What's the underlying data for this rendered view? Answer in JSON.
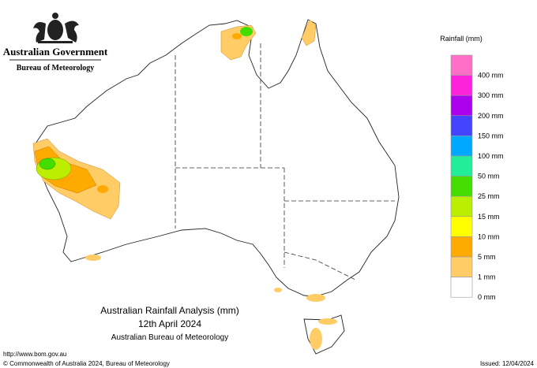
{
  "header": {
    "government": "Australian Government",
    "agency": "Bureau of Meteorology"
  },
  "legend": {
    "title": "Rainfall (mm)",
    "items": [
      {
        "label": "400 mm",
        "color": "#ff6ec7"
      },
      {
        "label": "300 mm",
        "color": "#ff22dd"
      },
      {
        "label": "200 mm",
        "color": "#aa00ee"
      },
      {
        "label": "150 mm",
        "color": "#4444ff"
      },
      {
        "label": "100 mm",
        "color": "#00a8ff"
      },
      {
        "label": "50 mm",
        "color": "#22ee99"
      },
      {
        "label": "25 mm",
        "color": "#44dd00"
      },
      {
        "label": "15 mm",
        "color": "#bbee00"
      },
      {
        "label": "10 mm",
        "color": "#ffff00"
      },
      {
        "label": "5 mm",
        "color": "#ffaa00"
      },
      {
        "label": "1 mm",
        "color": "#ffcc66"
      },
      {
        "label": "0 mm",
        "color": "#ffffff"
      }
    ]
  },
  "map": {
    "title": "Australian Rainfall Analysis (mm)",
    "date": "12th April 2024",
    "source": "Australian Bureau of Meteorology"
  },
  "footer": {
    "url": "http://www.bom.gov.au",
    "copyright": "© Commonwealth of Australia 2024, Bureau of Meteorology",
    "issued": "Issued: 12/04/2024"
  }
}
